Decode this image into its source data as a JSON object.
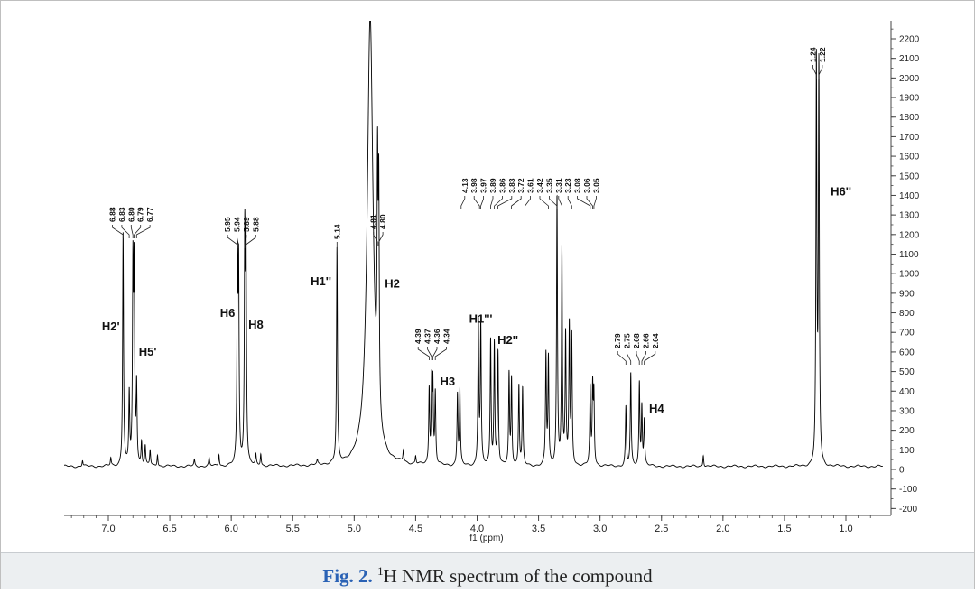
{
  "caption": {
    "label": "Fig. 2.",
    "sup": "1",
    "text": "H NMR spectrum of the compound"
  },
  "chart_data": {
    "type": "line",
    "xlabel": "f1 (ppm)",
    "x_reversed": true,
    "xlim": [
      7.4,
      0.7
    ],
    "ylim": [
      -200,
      2300
    ],
    "x_ticks": [
      7.0,
      6.5,
      6.0,
      5.5,
      5.0,
      4.5,
      4.0,
      3.5,
      3.0,
      2.5,
      2.0,
      1.5,
      1.0
    ],
    "y_ticks": [
      -200,
      -100,
      0,
      100,
      200,
      300,
      400,
      500,
      600,
      700,
      800,
      900,
      1000,
      1100,
      1200,
      1300,
      1400,
      1500,
      1600,
      1700,
      1800,
      1900,
      2000,
      2100,
      2200
    ],
    "baseline": 15,
    "peaks": [
      {
        "ppm": 7.21,
        "h": 30
      },
      {
        "ppm": 6.98,
        "h": 40
      },
      {
        "ppm": 6.88,
        "h": 1190
      },
      {
        "ppm": 6.83,
        "h": 360
      },
      {
        "ppm": 6.8,
        "h": 970
      },
      {
        "ppm": 6.79,
        "h": 950
      },
      {
        "ppm": 6.77,
        "h": 400
      },
      {
        "ppm": 6.73,
        "h": 120
      },
      {
        "ppm": 6.7,
        "h": 100
      },
      {
        "ppm": 6.66,
        "h": 80
      },
      {
        "ppm": 6.6,
        "h": 60
      },
      {
        "ppm": 6.3,
        "h": 30
      },
      {
        "ppm": 6.18,
        "h": 40
      },
      {
        "ppm": 6.1,
        "h": 60
      },
      {
        "ppm": 5.95,
        "h": 980
      },
      {
        "ppm": 5.94,
        "h": 960
      },
      {
        "ppm": 5.89,
        "h": 1120
      },
      {
        "ppm": 5.88,
        "h": 1090
      },
      {
        "ppm": 5.8,
        "h": 50
      },
      {
        "ppm": 5.76,
        "h": 60
      },
      {
        "ppm": 5.3,
        "h": 20
      },
      {
        "ppm": 5.14,
        "h": 1090
      },
      {
        "ppm": 4.87,
        "h": 2300,
        "w": 0.028
      },
      {
        "ppm": 4.81,
        "h": 1140
      },
      {
        "ppm": 4.8,
        "h": 1080
      },
      {
        "ppm": 4.6,
        "h": 60
      },
      {
        "ppm": 4.5,
        "h": 40
      },
      {
        "ppm": 4.39,
        "h": 380
      },
      {
        "ppm": 4.37,
        "h": 400
      },
      {
        "ppm": 4.36,
        "h": 390
      },
      {
        "ppm": 4.34,
        "h": 360
      },
      {
        "ppm": 4.16,
        "h": 360
      },
      {
        "ppm": 4.14,
        "h": 380
      },
      {
        "ppm": 3.99,
        "h": 730
      },
      {
        "ppm": 3.97,
        "h": 710
      },
      {
        "ppm": 3.89,
        "h": 640
      },
      {
        "ppm": 3.86,
        "h": 620
      },
      {
        "ppm": 3.83,
        "h": 580
      },
      {
        "ppm": 3.74,
        "h": 460
      },
      {
        "ppm": 3.72,
        "h": 440
      },
      {
        "ppm": 3.66,
        "h": 410
      },
      {
        "ppm": 3.63,
        "h": 390
      },
      {
        "ppm": 3.44,
        "h": 560
      },
      {
        "ppm": 3.42,
        "h": 540
      },
      {
        "ppm": 3.35,
        "h": 1370
      },
      {
        "ppm": 3.31,
        "h": 1100
      },
      {
        "ppm": 3.28,
        "h": 650
      },
      {
        "ppm": 3.25,
        "h": 700
      },
      {
        "ppm": 3.23,
        "h": 650
      },
      {
        "ppm": 3.08,
        "h": 390
      },
      {
        "ppm": 3.06,
        "h": 380
      },
      {
        "ppm": 3.05,
        "h": 350
      },
      {
        "ppm": 2.79,
        "h": 300
      },
      {
        "ppm": 2.75,
        "h": 470
      },
      {
        "ppm": 2.68,
        "h": 420
      },
      {
        "ppm": 2.66,
        "h": 300
      },
      {
        "ppm": 2.64,
        "h": 230
      },
      {
        "ppm": 2.16,
        "h": 60
      },
      {
        "ppm": 1.24,
        "h": 2030
      },
      {
        "ppm": 1.22,
        "h": 2010
      }
    ],
    "peak_groups": [
      {
        "labels": [
          "6.88",
          "6.83",
          "6.80",
          "6.79",
          "6.77"
        ],
        "peaks": [
          6.88,
          6.83,
          6.8,
          6.79,
          6.77
        ]
      },
      {
        "labels": [
          "5.95",
          "5.94",
          "5.89",
          "5.88"
        ],
        "peaks": [
          5.95,
          5.94,
          5.89,
          5.88
        ]
      },
      {
        "labels": [
          "5.14"
        ],
        "peaks": [
          5.14
        ]
      },
      {
        "labels": [
          "4.81",
          "4.80"
        ],
        "peaks": [
          4.81,
          4.8
        ]
      },
      {
        "labels": [
          "4.39",
          "4.37",
          "4.36",
          "4.34"
        ],
        "peaks": [
          4.39,
          4.37,
          4.36,
          4.34
        ]
      },
      {
        "labels": [
          "4.13",
          "3.98",
          "3.97",
          "3.89",
          "3.86",
          "3.83",
          "3.72",
          "3.61",
          "3.42",
          "3.35",
          "3.31",
          "3.23",
          "3.08",
          "3.06",
          "3.05"
        ],
        "peaks": [
          4.13,
          3.98,
          3.97,
          3.89,
          3.86,
          3.83,
          3.72,
          3.61,
          3.42,
          3.35,
          3.31,
          3.23,
          3.08,
          3.06,
          3.05
        ]
      },
      {
        "labels": [
          "2.79",
          "2.75",
          "2.68",
          "2.66",
          "2.64"
        ],
        "peaks": [
          2.79,
          2.75,
          2.68,
          2.66,
          2.64
        ]
      },
      {
        "labels": [
          "1.24",
          "1.22"
        ],
        "peaks": [
          1.24,
          1.22
        ]
      }
    ],
    "annotations": [
      {
        "text": "H2'",
        "ppm": 6.98,
        "y": 710
      },
      {
        "text": "H5'",
        "ppm": 6.68,
        "y": 580
      },
      {
        "text": "H6",
        "ppm": 6.03,
        "y": 780
      },
      {
        "text": "H8",
        "ppm": 5.8,
        "y": 720
      },
      {
        "text": "H1''",
        "ppm": 5.27,
        "y": 940
      },
      {
        "text": "H2",
        "ppm": 4.69,
        "y": 930
      },
      {
        "text": "H3",
        "ppm": 4.24,
        "y": 430
      },
      {
        "text": "H1'''",
        "ppm": 3.97,
        "y": 750
      },
      {
        "text": "H2''",
        "ppm": 3.75,
        "y": 640
      },
      {
        "text": "H4",
        "ppm": 2.54,
        "y": 290
      },
      {
        "text": "H6''",
        "ppm": 1.04,
        "y": 1400
      }
    ]
  }
}
